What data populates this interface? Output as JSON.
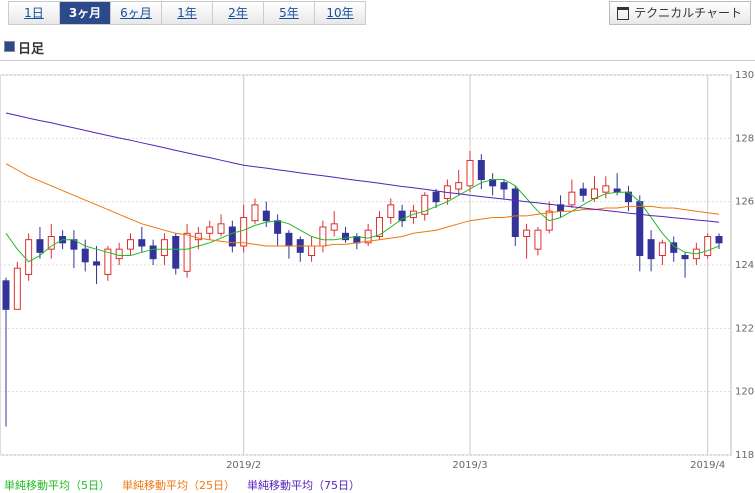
{
  "tabs": [
    {
      "label": "1日",
      "active": false
    },
    {
      "label": "3ヶ月",
      "active": true
    },
    {
      "label": "6ヶ月",
      "active": false
    },
    {
      "label": "1年",
      "active": false
    },
    {
      "label": "2年",
      "active": false
    },
    {
      "label": "5年",
      "active": false
    },
    {
      "label": "10年",
      "active": false
    }
  ],
  "button": "テクニカルチャート",
  "heading": "日足",
  "chart_data": {
    "type": "candlestick",
    "categories": [
      null,
      null,
      null,
      null,
      null,
      null,
      null,
      null,
      null,
      null,
      null,
      null,
      null,
      null,
      null,
      null,
      null,
      null,
      null,
      null,
      null,
      "2019/2",
      null,
      null,
      null,
      null,
      null,
      null,
      null,
      null,
      null,
      null,
      null,
      null,
      null,
      null,
      null,
      null,
      null,
      null,
      null,
      "2019/3",
      null,
      null,
      null,
      null,
      null,
      null,
      null,
      null,
      null,
      null,
      null,
      null,
      null,
      null,
      null,
      null,
      null,
      null,
      null,
      null,
      "2019/4",
      null
    ],
    "open": [
      123.5,
      122.6,
      123.7,
      124.8,
      124.5,
      124.9,
      124.8,
      124.5,
      124.1,
      123.7,
      124.2,
      124.5,
      124.8,
      124.6,
      124.3,
      124.9,
      123.8,
      124.8,
      125.0,
      125.0,
      125.2,
      124.6,
      125.4,
      125.7,
      125.4,
      125.0,
      124.8,
      124.3,
      124.6,
      125.1,
      125.0,
      124.9,
      124.7,
      124.9,
      125.5,
      125.7,
      125.5,
      125.6,
      126.3,
      126.1,
      126.4,
      126.5,
      127.3,
      126.7,
      126.6,
      126.4,
      124.9,
      124.5,
      125.1,
      125.9,
      125.9,
      126.4,
      126.1,
      126.3,
      126.4,
      126.3,
      126.0,
      124.8,
      124.3,
      124.7,
      124.3,
      124.2,
      124.3,
      124.9
    ],
    "high": [
      123.6,
      124.1,
      125.0,
      125.2,
      125.3,
      125.1,
      125.1,
      124.8,
      124.6,
      124.6,
      124.7,
      125.0,
      125.2,
      124.8,
      125.0,
      125.0,
      125.3,
      125.2,
      125.4,
      125.6,
      125.4,
      125.9,
      126.1,
      126.0,
      125.6,
      125.1,
      124.9,
      124.9,
      125.4,
      125.7,
      125.2,
      125.0,
      125.3,
      125.7,
      126.1,
      125.9,
      125.9,
      126.3,
      126.4,
      126.7,
      127.0,
      127.6,
      127.5,
      126.9,
      126.7,
      126.5,
      125.3,
      125.2,
      126.0,
      126.2,
      126.7,
      126.6,
      126.8,
      126.8,
      126.9,
      126.5,
      126.2,
      125.1,
      124.8,
      124.9,
      124.4,
      124.7,
      125.0,
      125.0
    ],
    "low": [
      118.9,
      122.6,
      123.5,
      124.2,
      124.2,
      124.5,
      123.9,
      123.8,
      123.4,
      123.5,
      124.0,
      124.3,
      124.4,
      124.0,
      124.0,
      123.7,
      123.6,
      124.5,
      124.8,
      124.9,
      124.4,
      124.4,
      125.3,
      125.2,
      124.6,
      124.2,
      124.1,
      124.1,
      124.4,
      124.9,
      124.7,
      124.5,
      124.6,
      124.8,
      125.3,
      125.2,
      125.3,
      125.4,
      125.8,
      125.9,
      126.2,
      126.3,
      126.4,
      126.2,
      126.1,
      124.6,
      124.2,
      124.3,
      125.0,
      125.5,
      125.8,
      126.0,
      126.0,
      126.1,
      126.2,
      125.7,
      123.8,
      123.8,
      124.0,
      124.1,
      123.6,
      124.0,
      124.2,
      124.5
    ],
    "close": [
      122.6,
      123.9,
      124.8,
      124.4,
      124.9,
      124.7,
      124.5,
      124.1,
      124.0,
      124.5,
      124.5,
      124.8,
      124.6,
      124.2,
      124.8,
      123.9,
      125.0,
      125.0,
      125.2,
      125.3,
      124.6,
      125.5,
      125.9,
      125.4,
      125.0,
      124.6,
      124.4,
      124.6,
      125.2,
      125.3,
      124.8,
      124.7,
      125.1,
      125.5,
      125.9,
      125.4,
      125.7,
      126.2,
      126.0,
      126.5,
      126.6,
      127.3,
      126.7,
      126.5,
      126.4,
      124.9,
      125.1,
      125.1,
      125.7,
      125.7,
      126.3,
      126.2,
      126.4,
      126.5,
      126.3,
      126.0,
      124.3,
      124.2,
      124.7,
      124.4,
      124.2,
      124.5,
      124.9,
      124.7
    ],
    "up_color": "#e03030",
    "down_color": "#333399",
    "lines": [
      {
        "name": "単純移動平均（5日）",
        "color": "#22bb22",
        "values": [
          125.0,
          124.5,
          124.1,
          124.3,
          124.6,
          124.8,
          124.8,
          124.6,
          124.5,
          124.4,
          124.3,
          124.3,
          124.4,
          124.5,
          124.5,
          124.5,
          124.5,
          124.6,
          124.7,
          124.85,
          125.0,
          125.1,
          125.25,
          125.35,
          125.4,
          125.3,
          125.1,
          124.9,
          124.8,
          124.8,
          124.85,
          124.9,
          124.85,
          124.95,
          125.2,
          125.45,
          125.6,
          125.7,
          125.85,
          126.0,
          126.2,
          126.4,
          126.6,
          126.7,
          126.7,
          126.5,
          126.1,
          125.7,
          125.4,
          125.5,
          125.7,
          125.9,
          126.1,
          126.25,
          126.3,
          126.3,
          126.0,
          125.5,
          125.0,
          124.6,
          124.4,
          124.35,
          124.45,
          124.6
        ]
      },
      {
        "name": "単純移動平均（25日）",
        "color": "#ee7711",
        "values": [
          127.2,
          127.0,
          126.8,
          126.65,
          126.5,
          126.35,
          126.2,
          126.05,
          125.9,
          125.75,
          125.6,
          125.45,
          125.3,
          125.2,
          125.1,
          125.0,
          124.95,
          124.85,
          124.8,
          124.75,
          124.7,
          124.7,
          124.65,
          124.6,
          124.6,
          124.6,
          124.6,
          124.6,
          124.6,
          124.65,
          124.65,
          124.7,
          124.75,
          124.8,
          124.85,
          124.9,
          125.0,
          125.05,
          125.1,
          125.2,
          125.3,
          125.4,
          125.45,
          125.5,
          125.5,
          125.55,
          125.55,
          125.6,
          125.65,
          125.7,
          125.7,
          125.75,
          125.75,
          125.8,
          125.8,
          125.85,
          125.85,
          125.85,
          125.8,
          125.8,
          125.75,
          125.7,
          125.65,
          125.6
        ]
      },
      {
        "name": "単純移動平均（75日）",
        "color": "#5522bb",
        "values": [
          128.8,
          128.72,
          128.64,
          128.56,
          128.49,
          128.41,
          128.33,
          128.25,
          128.17,
          128.09,
          128.01,
          127.94,
          127.86,
          127.78,
          127.7,
          127.62,
          127.54,
          127.46,
          127.39,
          127.31,
          127.23,
          127.15,
          127.1,
          127.06,
          127.01,
          126.96,
          126.91,
          126.86,
          126.82,
          126.77,
          126.72,
          126.67,
          126.63,
          126.58,
          126.53,
          126.48,
          126.44,
          126.39,
          126.34,
          126.29,
          126.25,
          126.2,
          126.16,
          126.12,
          126.08,
          126.04,
          126.0,
          125.96,
          125.92,
          125.88,
          125.84,
          125.8,
          125.76,
          125.72,
          125.68,
          125.64,
          125.6,
          125.56,
          125.53,
          125.49,
          125.46,
          125.42,
          125.39,
          125.35
        ]
      }
    ],
    "ylim": [
      118,
      130
    ],
    "yticks": [
      118,
      120,
      122,
      124,
      126,
      128,
      130
    ],
    "grid": true
  }
}
